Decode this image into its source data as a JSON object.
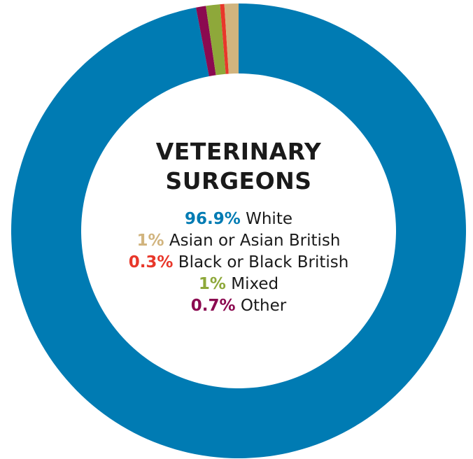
{
  "chart_data": {
    "type": "pie",
    "title_line1": "VETERINARY",
    "title_line2": "SURGEONS",
    "slices": [
      {
        "name": "White",
        "value": 96.9,
        "label": "96.9%",
        "color": "#007bb3"
      },
      {
        "name": "Other",
        "value": 0.7,
        "label": "0.7%",
        "color": "#8b0a50"
      },
      {
        "name": "Mixed",
        "value": 1,
        "label": "1%",
        "color": "#8ea83a"
      },
      {
        "name": "Black or Black British",
        "value": 0.3,
        "label": "0.3%",
        "color": "#e8372a"
      },
      {
        "name": "Asian or Asian British",
        "value": 1,
        "label": "1%",
        "color": "#d1b47e"
      }
    ],
    "legend": [
      {
        "value": "96.9%",
        "name": "White",
        "color": "#007bb3"
      },
      {
        "value": "1%",
        "name": "Asian or Asian British",
        "color": "#d1b47e"
      },
      {
        "value": "0.3%",
        "name": "Black or Black British",
        "color": "#e8372a"
      },
      {
        "value": "1%",
        "name": "Mixed",
        "color": "#8ea83a"
      },
      {
        "value": "0.7%",
        "name": "Other",
        "color": "#8b0a50"
      }
    ]
  }
}
